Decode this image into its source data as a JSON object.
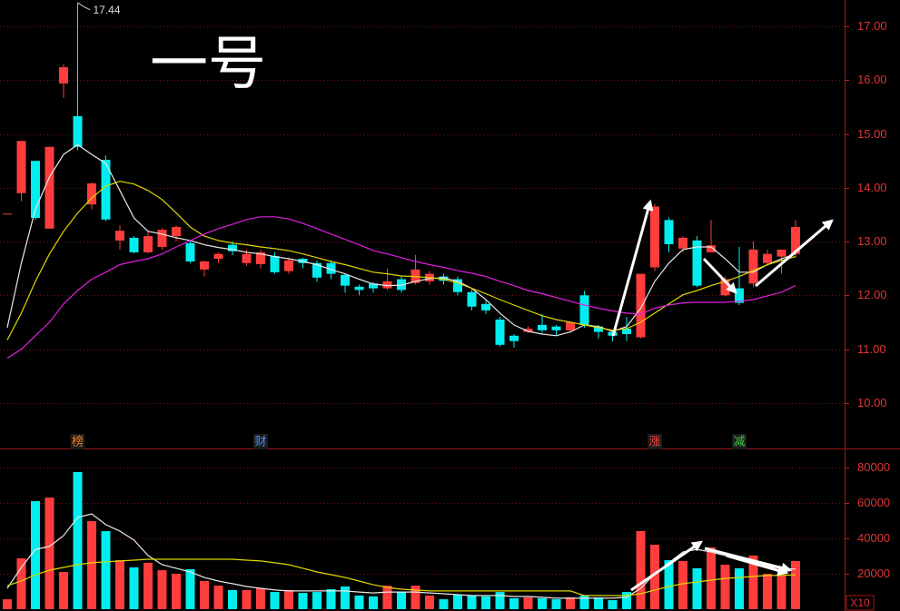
{
  "chart_data": [
    {
      "type": "candlestick",
      "title": "一号",
      "open": [
        13.52,
        13.9,
        14.5,
        13.24,
        15.94,
        15.33,
        13.69,
        14.52,
        13.02,
        13.07,
        12.8,
        12.9,
        13.1,
        12.97,
        12.48,
        12.68,
        12.94,
        12.6,
        12.58,
        12.73,
        12.45,
        12.68,
        12.6,
        12.6,
        12.38,
        12.16,
        12.22,
        12.13,
        12.3,
        12.23,
        12.26,
        12.35,
        12.3,
        12.06,
        11.84,
        11.55,
        11.25,
        11.32,
        11.45,
        11.42,
        11.35,
        12.0,
        11.42,
        11.32,
        11.38,
        11.22,
        12.52,
        13.4,
        12.87,
        13.02,
        12.8,
        12.0,
        12.13,
        12.22,
        12.6,
        12.72,
        12.77
      ],
      "high": [
        13.52,
        14.87,
        14.5,
        14.76,
        16.3,
        17.44,
        14.1,
        14.6,
        13.3,
        13.1,
        13.2,
        13.25,
        13.3,
        13.0,
        12.65,
        12.8,
        13.0,
        12.85,
        12.85,
        12.8,
        12.7,
        12.7,
        12.65,
        12.65,
        12.4,
        12.2,
        12.25,
        12.5,
        12.35,
        12.75,
        12.45,
        12.4,
        12.35,
        12.1,
        11.9,
        11.6,
        11.28,
        11.42,
        11.65,
        11.45,
        11.5,
        12.08,
        11.45,
        11.35,
        11.6,
        12.4,
        13.7,
        13.45,
        13.1,
        13.1,
        13.4,
        12.35,
        12.9,
        13.0,
        12.85,
        12.85,
        13.4
      ],
      "low": [
        13.52,
        13.75,
        13.4,
        13.24,
        15.67,
        14.7,
        13.6,
        13.38,
        12.85,
        12.78,
        12.78,
        12.85,
        13.0,
        12.6,
        12.35,
        12.6,
        12.75,
        12.55,
        12.5,
        12.4,
        12.4,
        12.5,
        12.25,
        12.3,
        12.05,
        12.0,
        12.05,
        12.1,
        12.05,
        12.2,
        12.2,
        12.2,
        12.0,
        11.72,
        11.65,
        11.05,
        11.03,
        11.3,
        11.3,
        11.25,
        11.3,
        11.4,
        11.2,
        11.15,
        11.15,
        11.2,
        12.45,
        12.8,
        12.8,
        12.15,
        12.8,
        11.98,
        11.82,
        12.15,
        12.55,
        12.4,
        12.7
      ],
      "close": [
        13.52,
        14.87,
        13.44,
        14.76,
        16.24,
        14.76,
        14.08,
        13.41,
        13.2,
        12.8,
        13.1,
        13.22,
        13.27,
        12.63,
        12.63,
        12.77,
        12.82,
        12.77,
        12.8,
        12.43,
        12.65,
        12.6,
        12.33,
        12.4,
        12.18,
        12.1,
        12.13,
        12.26,
        12.1,
        12.48,
        12.4,
        12.27,
        12.06,
        11.79,
        11.72,
        11.08,
        11.15,
        11.38,
        11.35,
        11.35,
        11.5,
        11.45,
        11.32,
        11.25,
        11.28,
        12.4,
        13.65,
        12.95,
        13.07,
        12.18,
        12.93,
        12.3,
        11.86,
        12.85,
        12.77,
        12.85,
        13.27
      ],
      "up_color": "#ff3d3d",
      "down_color": "#00eef0",
      "series": [
        {
          "color": "#e8e8e8",
          "values": [
            11.4,
            12.6,
            13.6,
            14.2,
            14.62,
            14.8,
            14.62,
            14.45,
            13.95,
            13.44,
            13.19,
            13.14,
            13.07,
            13.02,
            12.94,
            12.89,
            12.85,
            12.8,
            12.77,
            12.72,
            12.68,
            12.63,
            12.57,
            12.48,
            12.4,
            12.3,
            12.21,
            12.18,
            12.19,
            12.26,
            12.31,
            12.33,
            12.26,
            12.13,
            11.92,
            11.67,
            11.45,
            11.33,
            11.28,
            11.25,
            11.32,
            11.45,
            11.42,
            11.33,
            11.42,
            11.76,
            12.26,
            12.6,
            12.85,
            12.9,
            12.9,
            12.68,
            12.43,
            12.43,
            12.57,
            12.68,
            12.77
          ]
        },
        {
          "color": "#e0d800",
          "values": [
            11.17,
            11.67,
            12.26,
            12.77,
            13.19,
            13.53,
            13.81,
            14.03,
            14.12,
            14.07,
            13.95,
            13.78,
            13.53,
            13.27,
            13.1,
            13.02,
            12.97,
            12.94,
            12.9,
            12.87,
            12.83,
            12.77,
            12.7,
            12.63,
            12.57,
            12.5,
            12.43,
            12.4,
            12.36,
            12.35,
            12.33,
            12.3,
            12.23,
            12.13,
            12.03,
            11.92,
            11.82,
            11.72,
            11.62,
            11.55,
            11.5,
            11.45,
            11.4,
            11.35,
            11.38,
            11.5,
            11.67,
            11.84,
            12.01,
            12.09,
            12.18,
            12.26,
            12.35,
            12.46,
            12.57,
            12.65,
            12.72
          ]
        },
        {
          "color": "#e020e0",
          "values": [
            10.83,
            11.0,
            11.25,
            11.5,
            11.84,
            12.09,
            12.3,
            12.43,
            12.57,
            12.63,
            12.68,
            12.77,
            12.9,
            13.02,
            13.14,
            13.24,
            13.32,
            13.41,
            13.46,
            13.46,
            13.42,
            13.34,
            13.24,
            13.14,
            13.04,
            12.94,
            12.83,
            12.77,
            12.7,
            12.63,
            12.57,
            12.52,
            12.46,
            12.41,
            12.35,
            12.26,
            12.18,
            12.09,
            12.03,
            11.96,
            11.89,
            11.82,
            11.76,
            11.71,
            11.67,
            11.65,
            11.76,
            11.82,
            11.86,
            11.87,
            11.87,
            11.87,
            11.89,
            11.92,
            11.99,
            12.06,
            12.18
          ]
        }
      ],
      "ylim": [
        9.17,
        17.49
      ],
      "yticks": [
        {
          "value": 10,
          "label": "10.00"
        },
        {
          "value": 11,
          "label": "11.00"
        },
        {
          "value": 12,
          "label": "12.00"
        },
        {
          "value": 13,
          "label": "13.00"
        },
        {
          "value": 14,
          "label": "14.00"
        },
        {
          "value": 15,
          "label": "15.00"
        },
        {
          "value": 16,
          "label": "16.00"
        },
        {
          "value": 17,
          "label": "17.00"
        }
      ],
      "grid": true,
      "annotations": [
        {
          "text": "17.44",
          "candle": 5
        }
      ],
      "markers": [
        {
          "label": "榜",
          "candle": 5,
          "color": "#f08020"
        },
        {
          "label": "财",
          "candle": 18,
          "color": "#4a8cff"
        },
        {
          "label": "涨",
          "candle": 46,
          "color": "#ff4040"
        },
        {
          "label": "减",
          "candle": 52,
          "color": "#40d040"
        }
      ]
    },
    {
      "type": "bar",
      "values": [
        5600,
        28700,
        61000,
        63000,
        21000,
        77400,
        49700,
        44100,
        27700,
        23600,
        26200,
        22000,
        20000,
        22600,
        15900,
        13300,
        10800,
        10800,
        11800,
        9700,
        10800,
        9200,
        9700,
        11300,
        12800,
        7700,
        7200,
        13300,
        9700,
        13300,
        7700,
        5600,
        8200,
        7700,
        7200,
        9700,
        6200,
        6700,
        6200,
        5600,
        6700,
        7700,
        6700,
        5100,
        9700,
        44100,
        36400,
        27700,
        27200,
        23100,
        34900,
        25100,
        23100,
        30300,
        20000,
        19000,
        27200
      ],
      "series": [
        {
          "color": "#e8e8e8",
          "values": [
            11800,
            23600,
            33800,
            35400,
            41500,
            51800,
            53800,
            47700,
            44100,
            39000,
            30300,
            25100,
            23100,
            21000,
            17900,
            15900,
            14400,
            12800,
            11800,
            10800,
            10300,
            10300,
            10300,
            10300,
            10300,
            9700,
            9200,
            9700,
            9700,
            9700,
            9200,
            8700,
            8200,
            7700,
            7700,
            7700,
            7200,
            7200,
            6700,
            6200,
            6200,
            6200,
            6200,
            6200,
            6700,
            11800,
            20000,
            26200,
            32300,
            33800,
            32300,
            30300,
            27700,
            26200,
            24100,
            23100,
            22600
          ]
        },
        {
          "color": "#e0d800",
          "values": [
            13300,
            15900,
            19500,
            22000,
            23600,
            25100,
            26200,
            26700,
            27200,
            27700,
            28200,
            28200,
            28200,
            28200,
            28200,
            28200,
            28200,
            27700,
            27200,
            26200,
            25100,
            23100,
            21000,
            19500,
            17900,
            15900,
            13800,
            12300,
            11300,
            10800,
            10300,
            10300,
            10300,
            10300,
            10300,
            10300,
            10300,
            10300,
            10300,
            10300,
            10300,
            7700,
            7700,
            7700,
            7700,
            8700,
            10800,
            12800,
            14400,
            15400,
            16400,
            17400,
            17900,
            18500,
            19000,
            19000,
            19500
          ]
        }
      ],
      "ylim": [
        0,
        89700
      ],
      "yticks": [
        20000,
        40000,
        60000,
        80000
      ],
      "grid": true,
      "scale_label": "X10"
    }
  ]
}
